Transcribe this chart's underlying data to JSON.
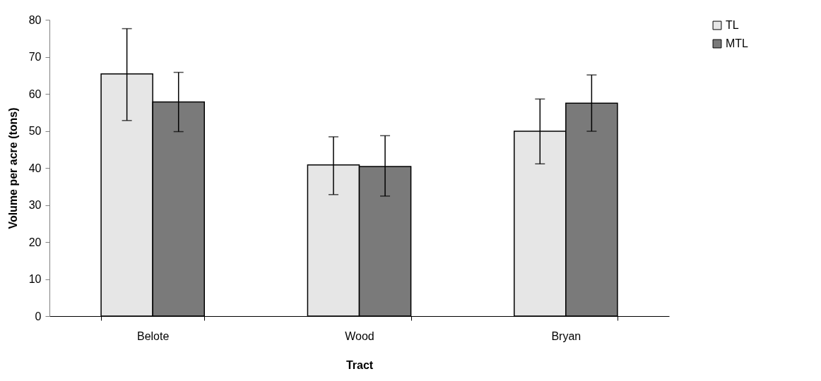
{
  "chart_data": {
    "type": "bar",
    "xlabel": "Tract",
    "ylabel": "Volume per acre (tons)",
    "categories": [
      "Belote",
      "Wood",
      "Bryan"
    ],
    "series": [
      {
        "name": "TL",
        "color": "#e6e6e6",
        "values": [
          65.4,
          40.8,
          49.9
        ],
        "errors": [
          [
            52.8,
            77.6
          ],
          [
            32.8,
            48.4
          ],
          [
            41.1,
            58.6
          ]
        ]
      },
      {
        "name": "MTL",
        "color": "#7a7a7a",
        "values": [
          57.8,
          40.4,
          57.5
        ],
        "errors": [
          [
            49.8,
            65.8
          ],
          [
            32.4,
            48.7
          ],
          [
            49.9,
            65.1
          ]
        ]
      }
    ],
    "ylim": [
      0,
      80
    ],
    "yticks": [
      0,
      10,
      20,
      30,
      40,
      50,
      60,
      70,
      80
    ],
    "grid": false,
    "legend": "right"
  }
}
